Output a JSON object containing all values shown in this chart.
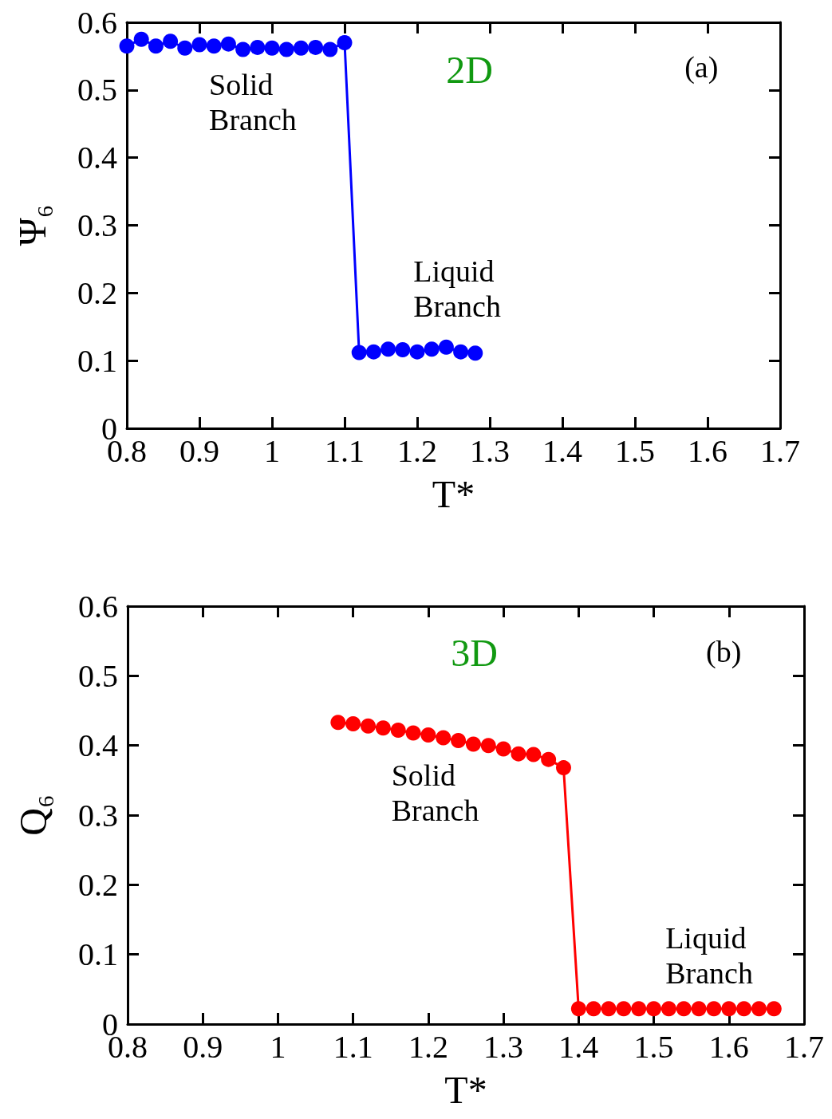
{
  "chart_data": [
    {
      "type": "line",
      "xlabel": "T*",
      "ylabel": "Ψ₆",
      "xlim": [
        0.8,
        1.7
      ],
      "ylim": [
        0,
        0.6
      ],
      "xticks": [
        0.8,
        0.9,
        1,
        1.1,
        1.2,
        1.3,
        1.4,
        1.5,
        1.6,
        1.7
      ],
      "yticks": [
        0,
        0.1,
        0.2,
        0.3,
        0.4,
        0.5,
        0.6
      ],
      "grid": false,
      "marker": "circle",
      "line_style": "solid",
      "annotations": [
        "2D",
        "(a)",
        "Solid Branch",
        "Liquid Branch"
      ],
      "series": [
        {
          "color": "#0000ff",
          "x": [
            0.8,
            0.82,
            0.84,
            0.86,
            0.88,
            0.9,
            0.92,
            0.94,
            0.96,
            0.98,
            1.0,
            1.02,
            1.04,
            1.06,
            1.08,
            1.1,
            1.12,
            1.14,
            1.16,
            1.18,
            1.2,
            1.22,
            1.24,
            1.26,
            1.28
          ],
          "values": [
            0.565,
            0.575,
            0.565,
            0.572,
            0.562,
            0.567,
            0.565,
            0.568,
            0.56,
            0.563,
            0.562,
            0.56,
            0.562,
            0.563,
            0.56,
            0.57,
            0.112,
            0.113,
            0.117,
            0.116,
            0.113,
            0.117,
            0.12,
            0.113,
            0.111
          ]
        }
      ]
    },
    {
      "type": "line",
      "xlabel": "T*",
      "ylabel": "Q₆",
      "xlim": [
        0.8,
        1.7
      ],
      "ylim": [
        0,
        0.6
      ],
      "xticks": [
        0.8,
        0.9,
        1,
        1.1,
        1.2,
        1.3,
        1.4,
        1.5,
        1.6,
        1.7
      ],
      "yticks": [
        0,
        0.1,
        0.2,
        0.3,
        0.4,
        0.5,
        0.6
      ],
      "grid": false,
      "marker": "circle",
      "line_style": "solid",
      "annotations": [
        "3D",
        "(b)",
        "Solid Branch",
        "Liquid Branch"
      ],
      "series": [
        {
          "color": "#ff0000",
          "x": [
            1.08,
            1.1,
            1.12,
            1.14,
            1.16,
            1.18,
            1.2,
            1.22,
            1.24,
            1.26,
            1.28,
            1.3,
            1.32,
            1.34,
            1.36,
            1.38,
            1.4,
            1.42,
            1.44,
            1.46,
            1.48,
            1.5,
            1.52,
            1.54,
            1.56,
            1.58,
            1.6,
            1.62,
            1.64,
            1.66
          ],
          "values": [
            0.433,
            0.431,
            0.428,
            0.425,
            0.422,
            0.418,
            0.415,
            0.411,
            0.407,
            0.402,
            0.4,
            0.395,
            0.388,
            0.387,
            0.38,
            0.368,
            0.022,
            0.022,
            0.022,
            0.022,
            0.022,
            0.022,
            0.022,
            0.022,
            0.022,
            0.022,
            0.022,
            0.022,
            0.022,
            0.022
          ]
        }
      ]
    }
  ]
}
